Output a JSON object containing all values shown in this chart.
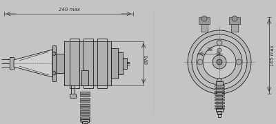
{
  "bg_color": "#c4c4c4",
  "line_color": "#1a1a1a",
  "dim_color": "#2a2a2a",
  "fill_light": "#b0b0b0",
  "fill_mid": "#a8a8a8",
  "fill_dark": "#989898",
  "dim_240": "240 max",
  "dim_70": "Ø70",
  "dim_38": "38",
  "dim_165": "165 max",
  "figsize": [
    4.0,
    1.8
  ],
  "dpi": 100
}
